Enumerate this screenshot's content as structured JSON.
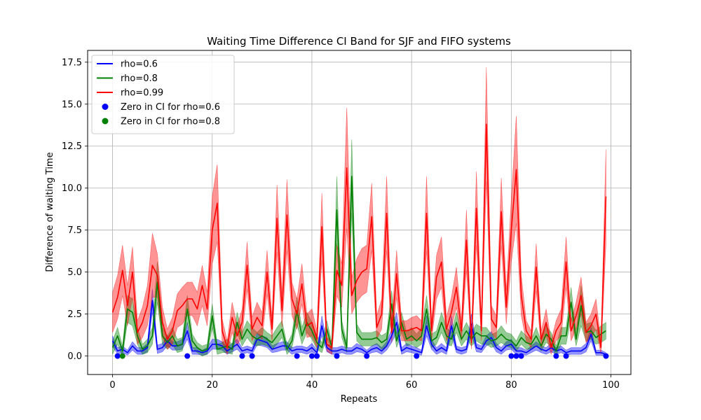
{
  "chart_data": {
    "type": "line",
    "title": "Waiting Time Difference CI Band for SJF and FIFO systems",
    "xlabel": "Repeats",
    "ylabel": "Difference of waiting Time",
    "xlim": [
      -5,
      104
    ],
    "ylim": [
      -1.1,
      18.2
    ],
    "xticks": [
      0,
      20,
      40,
      60,
      80,
      100
    ],
    "yticks": [
      0.0,
      2.5,
      5.0,
      7.5,
      10.0,
      12.5,
      15.0,
      17.5
    ],
    "ytick_labels": [
      "0.0",
      "2.5",
      "5.0",
      "7.5",
      "10.0",
      "12.5",
      "15.0",
      "17.5"
    ],
    "grid": true,
    "legend_position": "upper-left",
    "series": [
      {
        "name": "rho=0.6",
        "color": "#0000ff",
        "band_color": "#0000ff",
        "x": [
          0,
          1,
          2,
          3,
          4,
          5,
          6,
          7,
          8,
          9,
          10,
          11,
          12,
          13,
          14,
          15,
          16,
          17,
          18,
          19,
          20,
          21,
          22,
          23,
          24,
          25,
          26,
          27,
          28,
          29,
          30,
          31,
          32,
          33,
          34,
          35,
          36,
          37,
          38,
          39,
          40,
          41,
          42,
          43,
          44,
          45,
          46,
          47,
          48,
          49,
          50,
          51,
          52,
          53,
          54,
          55,
          56,
          57,
          58,
          59,
          60,
          61,
          62,
          63,
          64,
          65,
          66,
          67,
          68,
          69,
          70,
          71,
          72,
          73,
          74,
          75,
          76,
          77,
          78,
          79,
          80,
          81,
          82,
          83,
          84,
          85,
          86,
          87,
          88,
          89,
          90,
          91,
          92,
          93,
          94,
          95,
          96,
          97,
          98,
          99
        ],
        "y": [
          0.9,
          0.3,
          0.4,
          0.2,
          0.6,
          0.3,
          0.3,
          0.5,
          3.3,
          0.4,
          0.5,
          0.9,
          0.6,
          0.6,
          0.7,
          1.5,
          0.3,
          0.3,
          0.2,
          0.3,
          0.7,
          0.7,
          0.6,
          0.3,
          0.5,
          0.7,
          0.3,
          0.4,
          0.3,
          1.0,
          0.9,
          0.8,
          0.4,
          0.5,
          0.6,
          0.6,
          0.3,
          0.4,
          0.4,
          0.3,
          0.5,
          0.2,
          1.8,
          0.5,
          0.3,
          0.3,
          0.4,
          0.3,
          0.3,
          0.5,
          0.4,
          0.2,
          0.4,
          0.5,
          0.3,
          0.6,
          1.2,
          2.0,
          0.3,
          0.5,
          0.4,
          0.3,
          0.2,
          1.8,
          0.7,
          0.3,
          0.5,
          0.3,
          1.8,
          0.4,
          0.3,
          0.4,
          1.9,
          0.5,
          0.4,
          0.9,
          1.1,
          0.5,
          0.3,
          0.6,
          0.7,
          0.3,
          0.3,
          0.2,
          0.4,
          0.6,
          0.4,
          0.3,
          0.5,
          0.3,
          0.4,
          0.2,
          0.3,
          0.3,
          0.3,
          0.5,
          1.3,
          0.2,
          0.2,
          0.1
        ],
        "ci_halfwidth": [
          0.3,
          0.2,
          0.2,
          0.15,
          0.25,
          0.2,
          0.2,
          0.25,
          0.7,
          0.25,
          0.25,
          0.3,
          0.25,
          0.25,
          0.3,
          0.5,
          0.2,
          0.2,
          0.15,
          0.2,
          0.3,
          0.3,
          0.25,
          0.2,
          0.25,
          0.3,
          0.2,
          0.2,
          0.2,
          0.35,
          0.3,
          0.3,
          0.2,
          0.25,
          0.25,
          0.25,
          0.2,
          0.2,
          0.2,
          0.2,
          0.25,
          0.15,
          0.6,
          0.25,
          0.2,
          0.2,
          0.2,
          0.2,
          0.2,
          0.25,
          0.2,
          0.15,
          0.2,
          0.25,
          0.2,
          0.25,
          0.4,
          0.6,
          0.2,
          0.25,
          0.2,
          0.2,
          0.15,
          0.6,
          0.3,
          0.2,
          0.25,
          0.2,
          0.6,
          0.2,
          0.2,
          0.2,
          0.6,
          0.25,
          0.2,
          0.3,
          0.35,
          0.25,
          0.2,
          0.25,
          0.3,
          0.2,
          0.2,
          0.15,
          0.2,
          0.25,
          0.2,
          0.2,
          0.25,
          0.2,
          0.2,
          0.15,
          0.2,
          0.2,
          0.2,
          0.25,
          0.4,
          0.15,
          0.15,
          0.1
        ]
      },
      {
        "name": "rho=0.8",
        "color": "#008000",
        "band_color": "#008000",
        "x": [
          0,
          1,
          2,
          3,
          4,
          5,
          6,
          7,
          8,
          9,
          10,
          11,
          12,
          13,
          14,
          15,
          16,
          17,
          18,
          19,
          20,
          21,
          22,
          23,
          24,
          25,
          26,
          27,
          28,
          29,
          30,
          31,
          32,
          33,
          34,
          35,
          36,
          37,
          38,
          39,
          40,
          41,
          42,
          43,
          44,
          45,
          46,
          47,
          48,
          49,
          50,
          51,
          52,
          53,
          54,
          55,
          56,
          57,
          58,
          59,
          60,
          61,
          62,
          63,
          64,
          65,
          66,
          67,
          68,
          69,
          70,
          71,
          72,
          73,
          74,
          75,
          76,
          77,
          78,
          79,
          80,
          81,
          82,
          83,
          84,
          85,
          86,
          87,
          88,
          89,
          90,
          91,
          92,
          93,
          94,
          95,
          96,
          97,
          98,
          99
        ],
        "y": [
          0.5,
          1.2,
          0.3,
          2.8,
          2.6,
          1.2,
          0.4,
          0.6,
          1.2,
          4.4,
          1.2,
          0.8,
          1.2,
          0.6,
          0.7,
          2.8,
          0.9,
          0.5,
          0.3,
          0.4,
          2.4,
          0.4,
          0.5,
          0.6,
          0.4,
          2.0,
          1.0,
          1.6,
          1.2,
          1.0,
          1.2,
          1.0,
          0.8,
          1.2,
          1.6,
          0.4,
          0.9,
          2.7,
          1.2,
          2.0,
          1.5,
          0.8,
          0.5,
          1.6,
          0.5,
          8.7,
          1.6,
          0.5,
          10.7,
          1.4,
          1.0,
          1.0,
          1.0,
          1.1,
          0.8,
          1.0,
          3.1,
          0.9,
          2.0,
          1.0,
          1.2,
          0.9,
          1.2,
          2.8,
          0.9,
          1.1,
          2.0,
          1.2,
          1.0,
          2.0,
          1.0,
          1.5,
          1.0,
          1.4,
          1.2,
          1.2,
          0.9,
          1.0,
          1.3,
          1.0,
          0.9,
          0.6,
          1.1,
          0.8,
          0.7,
          1.2,
          0.6,
          1.3,
          1.0,
          0.3,
          1.2,
          1.2,
          3.2,
          1.0,
          3.0,
          1.4,
          1.5,
          1.1,
          1.3,
          1.5
        ],
        "ci_halfwidth": [
          0.4,
          0.5,
          0.3,
          0.8,
          0.8,
          0.5,
          0.3,
          0.4,
          0.5,
          1.2,
          0.5,
          0.4,
          0.5,
          0.4,
          0.4,
          0.8,
          0.4,
          0.3,
          0.3,
          0.3,
          0.7,
          0.3,
          0.3,
          0.4,
          0.3,
          0.6,
          0.4,
          0.5,
          0.5,
          0.4,
          0.5,
          0.4,
          0.4,
          0.5,
          0.5,
          0.3,
          0.4,
          0.8,
          0.5,
          0.6,
          0.5,
          0.4,
          0.3,
          0.5,
          0.3,
          2.0,
          0.5,
          0.3,
          2.2,
          0.5,
          0.4,
          0.4,
          0.4,
          0.4,
          0.4,
          0.4,
          0.8,
          0.4,
          0.6,
          0.4,
          0.5,
          0.4,
          0.5,
          0.8,
          0.4,
          0.4,
          0.6,
          0.5,
          0.4,
          0.6,
          0.4,
          0.5,
          0.4,
          0.5,
          0.5,
          0.5,
          0.4,
          0.4,
          0.5,
          0.4,
          0.4,
          0.3,
          0.4,
          0.4,
          0.3,
          0.5,
          0.3,
          0.5,
          0.4,
          0.3,
          0.5,
          0.5,
          0.9,
          0.4,
          1.2,
          0.5,
          0.5,
          0.4,
          0.5,
          0.5
        ]
      },
      {
        "name": "rho=0.99",
        "color": "#ff0000",
        "band_color": "#ff0000",
        "x": [
          0,
          1,
          2,
          3,
          4,
          5,
          6,
          7,
          8,
          9,
          10,
          11,
          12,
          13,
          14,
          15,
          16,
          17,
          18,
          19,
          20,
          21,
          22,
          23,
          24,
          25,
          26,
          27,
          28,
          29,
          30,
          31,
          32,
          33,
          34,
          35,
          36,
          37,
          38,
          39,
          40,
          41,
          42,
          43,
          44,
          45,
          46,
          47,
          48,
          49,
          50,
          51,
          52,
          53,
          54,
          55,
          56,
          57,
          58,
          59,
          60,
          61,
          62,
          63,
          64,
          65,
          66,
          67,
          68,
          69,
          70,
          71,
          72,
          73,
          74,
          75,
          76,
          77,
          78,
          79,
          80,
          81,
          82,
          83,
          84,
          85,
          86,
          87,
          88,
          89,
          90,
          91,
          92,
          93,
          94,
          95,
          96,
          97,
          98,
          99
        ],
        "y": [
          2.6,
          3.5,
          5.1,
          3.0,
          5.0,
          1.4,
          2.0,
          3.0,
          5.4,
          4.8,
          2.0,
          1.0,
          1.5,
          2.7,
          3.0,
          3.4,
          3.4,
          2.8,
          4.2,
          2.8,
          7.5,
          9.1,
          1.5,
          0.5,
          2.3,
          1.2,
          2.0,
          5.4,
          1.6,
          2.3,
          1.8,
          5.0,
          1.6,
          8.2,
          2.7,
          8.4,
          3.4,
          2.5,
          4.3,
          1.8,
          2.0,
          1.0,
          7.7,
          0.7,
          0.5,
          5.1,
          4.2,
          11.2,
          3.6,
          4.5,
          5.0,
          5.2,
          8.3,
          1.7,
          2.5,
          8.5,
          1.4,
          4.9,
          1.5,
          1.5,
          1.6,
          1.7,
          1.5,
          8.5,
          1.5,
          4.7,
          5.6,
          1.6,
          2.6,
          4.1,
          1.5,
          6.9,
          0.8,
          8.8,
          1.5,
          13.8,
          2.2,
          1.7,
          8.6,
          2.9,
          7.5,
          11.1,
          3.6,
          1.5,
          1.0,
          5.3,
          1.0,
          2.0,
          0.5,
          1.5,
          2.0,
          5.6,
          1.5,
          2.4,
          3.6,
          1.4,
          1.8,
          2.5,
          0.5,
          9.5
        ],
        "ci_halfwidth": [
          1.2,
          1.3,
          1.5,
          1.2,
          1.5,
          0.7,
          0.9,
          1.2,
          1.9,
          1.3,
          0.9,
          0.6,
          0.8,
          1.0,
          1.1,
          1.0,
          1.0,
          1.0,
          1.2,
          1.0,
          2.0,
          2.3,
          0.7,
          0.4,
          0.9,
          0.6,
          0.8,
          1.4,
          0.7,
          0.9,
          0.8,
          1.3,
          0.7,
          2.0,
          1.0,
          2.1,
          1.0,
          0.9,
          1.2,
          0.7,
          0.8,
          0.5,
          2.0,
          0.4,
          0.4,
          1.5,
          1.3,
          3.6,
          1.1,
          1.3,
          1.4,
          1.4,
          2.0,
          0.7,
          0.9,
          2.2,
          0.6,
          1.4,
          0.6,
          0.6,
          0.7,
          0.7,
          0.6,
          2.2,
          0.6,
          1.3,
          1.5,
          0.7,
          0.9,
          1.2,
          0.6,
          1.8,
          0.4,
          2.2,
          0.6,
          3.4,
          0.8,
          0.7,
          2.0,
          1.0,
          1.9,
          3.2,
          1.2,
          0.6,
          0.5,
          1.4,
          0.5,
          0.8,
          0.4,
          0.6,
          0.8,
          1.5,
          0.6,
          0.8,
          1.1,
          0.6,
          0.7,
          0.9,
          0.4,
          2.8
        ]
      }
    ],
    "markers": [
      {
        "name": "Zero in CI for rho=0.6",
        "color": "#0000ff",
        "x": [
          1,
          15,
          26,
          28,
          37,
          40,
          41,
          45,
          51,
          61,
          80,
          81,
          82,
          89,
          91,
          99
        ],
        "y": [
          0,
          0,
          0,
          0,
          0,
          0,
          0,
          0,
          0,
          0,
          0,
          0,
          0,
          0,
          0,
          0
        ]
      },
      {
        "name": "Zero in CI for rho=0.8",
        "color": "#008000",
        "x": [
          2
        ],
        "y": [
          0
        ]
      }
    ]
  }
}
